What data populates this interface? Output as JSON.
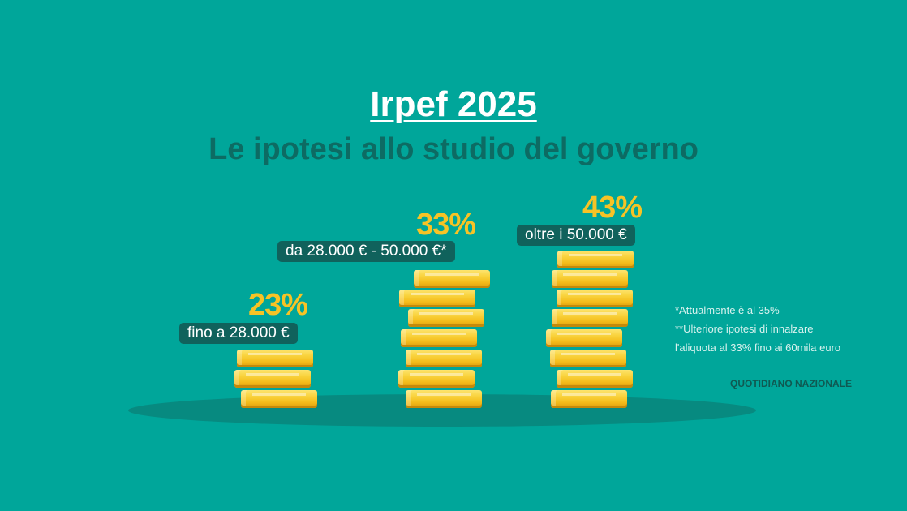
{
  "header": {
    "title": "Irpef 2025",
    "subtitle": "Le ipotesi allo studio del governo"
  },
  "brackets": [
    {
      "rate": "23%",
      "range": "fino a 28.000 €",
      "coins": 3
    },
    {
      "rate": "33%",
      "range": "da 28.000 € - 50.000 €*",
      "coins": 7
    },
    {
      "rate": "43%",
      "range": "oltre i 50.000 €",
      "coins": 8
    }
  ],
  "notes": [
    "*Attualmente è al 35%",
    "**Ulteriore ipotesi di innalzare",
    "l'aliquota al 33% fino ai 60mila euro"
  ],
  "source": "QUOTIDIANO NAZIONALE",
  "colors": {
    "background": "#00a69a",
    "subtitle": "#0d6b63",
    "rate": "#f7c325",
    "label_bg": "#10625c",
    "coin": "#f9d23c"
  }
}
